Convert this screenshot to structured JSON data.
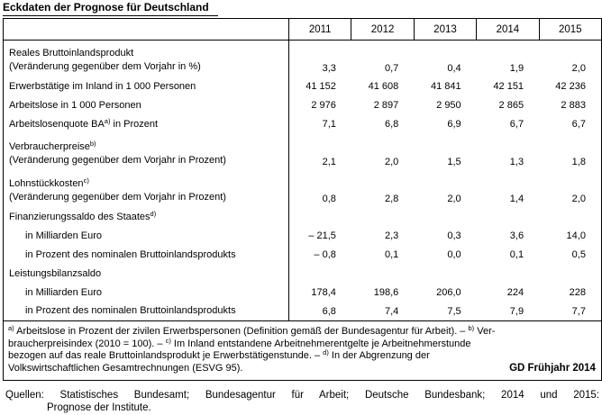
{
  "title": "Eckdaten der Prognose für Deutschland",
  "table": {
    "years": [
      "2011",
      "2012",
      "2013",
      "2014",
      "2015"
    ],
    "rows": [
      {
        "label": "Reales Bruttoinlandsprodukt",
        "line2": "(Veränderung gegenüber dem Vorjahr in %)",
        "values": [
          "3,3",
          "0,7",
          "0,4",
          "1,9",
          "2,0"
        ]
      },
      {
        "label": "Erwerbstätige im Inland in 1 000 Personen",
        "values": [
          "41 152",
          "41 608",
          "41 841",
          "42 151",
          "42 236"
        ]
      },
      {
        "label": "Arbeitslose in 1 000 Personen",
        "values": [
          "2 976",
          "2 897",
          "2 950",
          "2 865",
          "2 883"
        ]
      },
      {
        "label": "Arbeitslosenquote BA",
        "sup": "a)",
        "suffix": " in Prozent",
        "values": [
          "7,1",
          "6,8",
          "6,9",
          "6,7",
          "6,7"
        ]
      },
      {
        "label": "Verbraucherpreise",
        "sup": "b)",
        "line2": "(Veränderung gegenüber dem Vorjahr in Prozent)",
        "values": [
          "2,1",
          "2,0",
          "1,5",
          "1,3",
          "1,8"
        ]
      },
      {
        "label": "Lohnstückkosten",
        "sup": "c)",
        "line2": "(Veränderung gegenüber dem Vorjahr in Prozent)",
        "values": [
          "0,8",
          "2,8",
          "2,0",
          "1,4",
          "2,0"
        ]
      },
      {
        "label": "Finanzierungssaldo des Staates",
        "sup": "d)",
        "values": [
          "",
          "",
          "",
          "",
          ""
        ]
      },
      {
        "label": "in Milliarden Euro",
        "indent": true,
        "values": [
          "– 21,5",
          "2,3",
          "0,3",
          "3,6",
          "14,0"
        ]
      },
      {
        "label": "in Prozent des nominalen Bruttoinlandsprodukts",
        "indent": true,
        "values": [
          "– 0,8",
          "0,1",
          "0,0",
          "0,1",
          "0,5"
        ]
      },
      {
        "label": "Leistungsbilanzsaldo",
        "values": [
          "",
          "",
          "",
          "",
          ""
        ]
      },
      {
        "label": "in Milliarden Euro",
        "indent": true,
        "values": [
          "178,4",
          "198,6",
          "206,0",
          "224",
          "228"
        ]
      },
      {
        "label": "in Prozent des nominalen Bruttoinlandsprodukts",
        "indent": true,
        "values": [
          "6,8",
          "7,4",
          "7,5",
          "7,9",
          "7,7"
        ]
      }
    ]
  },
  "footnotes": {
    "line1": {
      "sup1": "a)",
      "text1": " Arbeitslose in Prozent der zivilen Erwerbspersonen (Definition gemäß der Bundesagentur für Arbeit). – ",
      "sup2": "b)",
      "text2": " Ver-"
    },
    "line2": {
      "text1": "braucherpreisindex (2010 = 100). – ",
      "sup1": "c)",
      "text2": " Im Inland entstandene Arbeitnehmerentgelte je Arbeitnehmerstunde"
    },
    "line3": {
      "text1": "bezogen auf das reale Bruttoinlandsprodukt je Erwerbstätigenstunde. – ",
      "sup1": "d)",
      "text2": " In der Abgrenzung der"
    },
    "line4": {
      "text1": "Volkswirtschaftlichen Gesamtrechnungen (ESVG 95).",
      "stamp": "GD Frühjahr 2014"
    }
  },
  "sources": {
    "line1": "Quellen: Statistisches Bundesamt; Bundesagentur für Arbeit; Deutsche Bundesbank; 2014 und 2015:",
    "line2": "Prognose der Institute."
  },
  "colors": {
    "text": "#000000",
    "background": "#ffffff",
    "border": "#000000"
  }
}
